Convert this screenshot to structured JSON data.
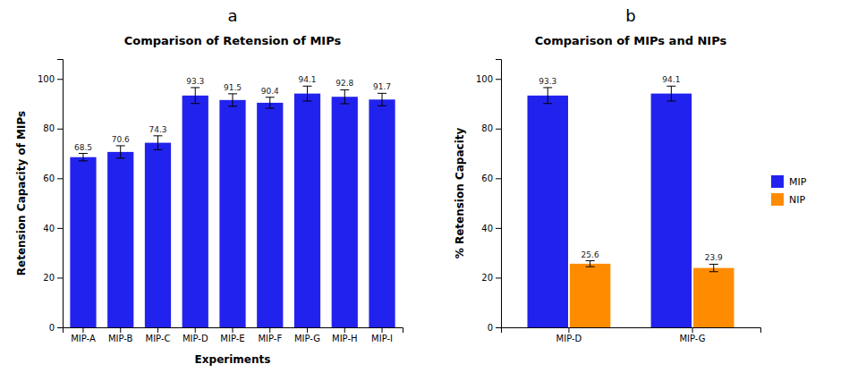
{
  "chart_data": [
    {
      "type": "bar",
      "title": "Comparison of Retension of MIPs",
      "xlabel": "Experiments",
      "ylabel": "Retension Capacity of MIPs",
      "annotations": [
        "a"
      ],
      "categories": [
        "MIP-A",
        "MIP-B",
        "MIP-C",
        "MIP-D",
        "MIP-E",
        "MIP-F",
        "MIP-G",
        "MIP-H",
        "MIP-I"
      ],
      "values": [
        68.5,
        70.6,
        74.3,
        93.3,
        91.5,
        90.4,
        94.1,
        92.8,
        91.7
      ],
      "errors": [
        1.5,
        2.5,
        2.8,
        3.2,
        2.5,
        2.2,
        3.0,
        2.8,
        2.5
      ],
      "color": "#2222EE",
      "ylim": [
        0,
        108
      ],
      "yticks": [
        0,
        20,
        40,
        60,
        80,
        100
      ],
      "data_labels": true
    },
    {
      "type": "bar",
      "title": "Comparison of MIPs and NIPs",
      "ylabel": "% Retension Capacity",
      "annotations": [
        "b"
      ],
      "categories": [
        "MIP-D",
        "MIP-G"
      ],
      "series": [
        {
          "name": "MIP",
          "color": "#2222EE",
          "values": [
            93.3,
            94.1
          ],
          "errors": [
            3.2,
            3.0
          ]
        },
        {
          "name": "NIP",
          "color": "#FF8C00",
          "values": [
            25.6,
            23.9
          ],
          "errors": [
            1.2,
            1.5
          ]
        }
      ],
      "ylim": [
        0,
        108
      ],
      "yticks": [
        0,
        20,
        40,
        60,
        80,
        100
      ],
      "legend": "right",
      "data_labels": true
    }
  ]
}
